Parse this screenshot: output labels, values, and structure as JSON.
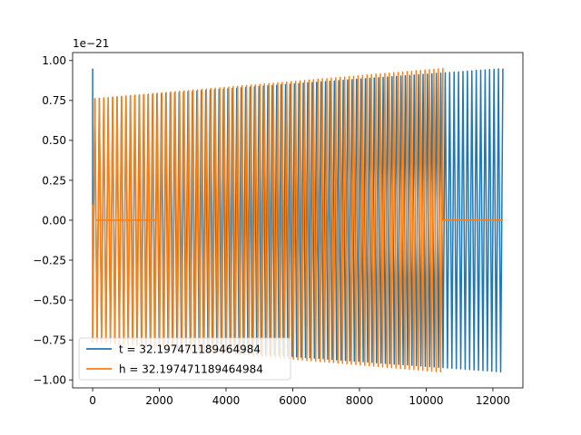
{
  "chart_data": {
    "type": "line",
    "title": "",
    "xlabel": "",
    "ylabel": "",
    "offset_label": "1e−21",
    "xlim": [
      -600,
      12900
    ],
    "ylim": [
      -1.05,
      1.05
    ],
    "xticks": [
      0,
      2000,
      4000,
      6000,
      8000,
      10000,
      12000
    ],
    "xtick_labels": [
      "0",
      "2000",
      "4000",
      "6000",
      "8000",
      "10000",
      "12000"
    ],
    "yticks": [
      1.0,
      0.75,
      0.5,
      0.25,
      0.0,
      -0.25,
      -0.5,
      -0.75,
      -1.0
    ],
    "ytick_labels": [
      "1.00",
      "0.75",
      "0.50",
      "0.25",
      "0.00",
      "−0.25",
      "−0.50",
      "−0.75",
      "−1.00"
    ],
    "grid": false,
    "legend_position": "lower-left",
    "series": [
      {
        "name": "t = 32.197471189464984",
        "color": "#1f77b4",
        "x_start": 0,
        "x_end": 12300,
        "first_peak": 0.95,
        "amp_start": 0.76,
        "amp_end": 0.95,
        "cycles": 92,
        "flat_zero_ranges": []
      },
      {
        "name": "h = 32.197471189464984",
        "color": "#ff7f0e",
        "x_start": 0,
        "x_end": 12300,
        "first_peak": 0.1,
        "amp_start": 0.76,
        "amp_end": 0.95,
        "cycles": 78,
        "oscillation_end": 10500,
        "flat_zero_ranges": [
          [
            80,
            1900
          ],
          [
            10500,
            12300
          ]
        ]
      }
    ]
  }
}
